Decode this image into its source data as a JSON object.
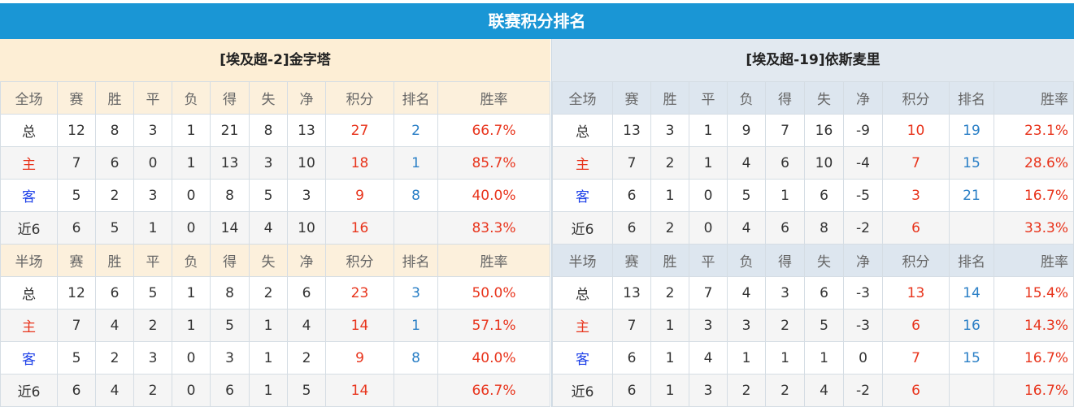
{
  "title": "联赛积分排名",
  "colors": {
    "title_bar": "#1a96d5",
    "points": "#e8341c",
    "rank": "#2a7fc6",
    "home": "#e8341c",
    "away": "#1c3fe8"
  },
  "teams": [
    {
      "name": "[埃及超-2]金字塔",
      "full": {
        "header": [
          "全场",
          "赛",
          "胜",
          "平",
          "负",
          "得",
          "失",
          "净",
          "积分",
          "排名",
          "胜率"
        ],
        "rows": [
          [
            "总",
            "12",
            "8",
            "3",
            "1",
            "21",
            "8",
            "13",
            "27",
            "2",
            "66.7%"
          ],
          [
            "主",
            "7",
            "6",
            "0",
            "1",
            "13",
            "3",
            "10",
            "18",
            "1",
            "85.7%"
          ],
          [
            "客",
            "5",
            "2",
            "3",
            "0",
            "8",
            "5",
            "3",
            "9",
            "8",
            "40.0%"
          ],
          [
            "近6",
            "6",
            "5",
            "1",
            "0",
            "14",
            "4",
            "10",
            "16",
            "",
            "83.3%"
          ]
        ]
      },
      "half": {
        "header": [
          "半场",
          "赛",
          "胜",
          "平",
          "负",
          "得",
          "失",
          "净",
          "积分",
          "排名",
          "胜率"
        ],
        "rows": [
          [
            "总",
            "12",
            "6",
            "5",
            "1",
            "8",
            "2",
            "6",
            "23",
            "3",
            "50.0%"
          ],
          [
            "主",
            "7",
            "4",
            "2",
            "1",
            "5",
            "1",
            "4",
            "14",
            "1",
            "57.1%"
          ],
          [
            "客",
            "5",
            "2",
            "3",
            "0",
            "3",
            "1",
            "2",
            "9",
            "8",
            "40.0%"
          ],
          [
            "近6",
            "6",
            "4",
            "2",
            "0",
            "6",
            "1",
            "5",
            "14",
            "",
            "66.7%"
          ]
        ]
      }
    },
    {
      "name": "[埃及超-19]依斯麦里",
      "full": {
        "header": [
          "全场",
          "赛",
          "胜",
          "平",
          "负",
          "得",
          "失",
          "净",
          "积分",
          "排名",
          "胜率"
        ],
        "rows": [
          [
            "总",
            "13",
            "3",
            "1",
            "9",
            "7",
            "16",
            "-9",
            "10",
            "19",
            "23.1%"
          ],
          [
            "主",
            "7",
            "2",
            "1",
            "4",
            "6",
            "10",
            "-4",
            "7",
            "15",
            "28.6%"
          ],
          [
            "客",
            "6",
            "1",
            "0",
            "5",
            "1",
            "6",
            "-5",
            "3",
            "21",
            "16.7%"
          ],
          [
            "近6",
            "6",
            "2",
            "0",
            "4",
            "6",
            "8",
            "-2",
            "6",
            "",
            "33.3%"
          ]
        ]
      },
      "half": {
        "header": [
          "半场",
          "赛",
          "胜",
          "平",
          "负",
          "得",
          "失",
          "净",
          "积分",
          "排名",
          "胜率"
        ],
        "rows": [
          [
            "总",
            "13",
            "2",
            "7",
            "4",
            "3",
            "6",
            "-3",
            "13",
            "14",
            "15.4%"
          ],
          [
            "主",
            "7",
            "1",
            "3",
            "3",
            "2",
            "5",
            "-3",
            "6",
            "16",
            "14.3%"
          ],
          [
            "客",
            "6",
            "1",
            "4",
            "1",
            "1",
            "1",
            "0",
            "7",
            "15",
            "16.7%"
          ],
          [
            "近6",
            "6",
            "1",
            "3",
            "2",
            "2",
            "4",
            "-2",
            "6",
            "",
            "16.7%"
          ]
        ]
      }
    }
  ]
}
